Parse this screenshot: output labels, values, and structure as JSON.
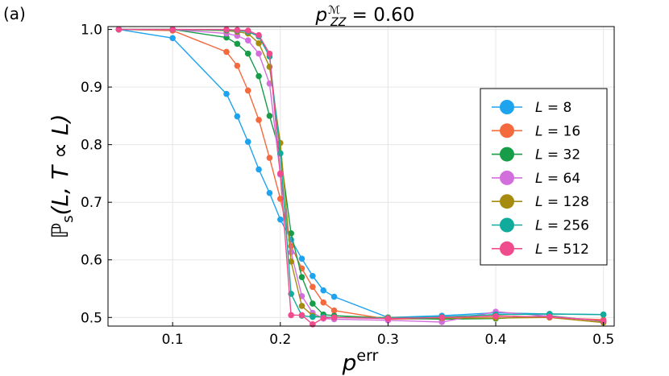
{
  "panel_label": "(a)",
  "chart_data": {
    "type": "line",
    "title": "p_ZZ^M = 0.60",
    "title_parts": {
      "base": "p",
      "sub": "ZZ",
      "sup": "ℳ",
      "rest": " = 0.60"
    },
    "xlabel": "p^err",
    "xlabel_parts": {
      "base": "p",
      "sup": "err"
    },
    "ylabel": "ℙs(L, T ∝ L)",
    "ylabel_parts": {
      "base": "ℙ",
      "sub": "s",
      "rest": "(L, T ∝ L)"
    },
    "xlim": [
      0.04,
      0.51
    ],
    "ylim": [
      0.485,
      1.005
    ],
    "xticks": [
      0.1,
      0.2,
      0.3,
      0.4,
      0.5
    ],
    "xtick_labels": [
      "0.1",
      "0.2",
      "0.3",
      "0.4",
      "0.5"
    ],
    "yticks": [
      0.5,
      0.6,
      0.7,
      0.8,
      0.9,
      1.0
    ],
    "ytick_labels": [
      "0.5",
      "0.6",
      "0.7",
      "0.8",
      "0.9",
      "1.0"
    ],
    "grid": true,
    "legend_position": "right",
    "series": [
      {
        "name": "L = 8",
        "label_var": "L",
        "label_rest": " = 8",
        "color": "#1ea3ef",
        "x": [
          0.05,
          0.1,
          0.15,
          0.16,
          0.17,
          0.18,
          0.19,
          0.2,
          0.21,
          0.22,
          0.23,
          0.24,
          0.25,
          0.3,
          0.35,
          0.4,
          0.45,
          0.5
        ],
        "y": [
          1.0,
          0.985,
          0.888,
          0.849,
          0.805,
          0.757,
          0.716,
          0.67,
          0.635,
          0.602,
          0.572,
          0.547,
          0.536,
          0.5,
          0.503,
          0.508,
          0.506,
          0.505
        ]
      },
      {
        "name": "L = 16",
        "label_var": "L",
        "label_rest": " = 16",
        "color": "#f46a3e",
        "x": [
          0.05,
          0.1,
          0.15,
          0.16,
          0.17,
          0.18,
          0.19,
          0.2,
          0.21,
          0.22,
          0.23,
          0.24,
          0.25,
          0.3,
          0.35,
          0.4,
          0.45,
          0.5
        ],
        "y": [
          1.0,
          0.998,
          0.961,
          0.937,
          0.894,
          0.843,
          0.777,
          0.706,
          0.624,
          0.585,
          0.553,
          0.526,
          0.512,
          0.497,
          0.498,
          0.503,
          0.5,
          0.496
        ]
      },
      {
        "name": "L = 32",
        "label_var": "L",
        "label_rest": " = 32",
        "color": "#179c47",
        "x": [
          0.05,
          0.1,
          0.15,
          0.16,
          0.17,
          0.18,
          0.19,
          0.2,
          0.21,
          0.22,
          0.23,
          0.24,
          0.25,
          0.3,
          0.35,
          0.4,
          0.45,
          0.5
        ],
        "y": [
          1.0,
          1.0,
          0.986,
          0.975,
          0.958,
          0.919,
          0.85,
          0.785,
          0.646,
          0.57,
          0.524,
          0.505,
          0.503,
          0.499,
          0.497,
          0.498,
          0.503,
          0.493
        ]
      },
      {
        "name": "L = 64",
        "label_var": "L",
        "label_rest": " = 64",
        "color": "#d26fdd",
        "x": [
          0.05,
          0.1,
          0.15,
          0.16,
          0.17,
          0.18,
          0.19,
          0.2,
          0.21,
          0.22,
          0.23,
          0.24,
          0.25,
          0.3,
          0.35,
          0.4,
          0.45,
          0.5
        ],
        "y": [
          1.0,
          1.0,
          0.993,
          0.989,
          0.981,
          0.958,
          0.906,
          0.748,
          0.613,
          0.537,
          0.508,
          0.498,
          0.497,
          0.495,
          0.492,
          0.51,
          0.502,
          0.494
        ]
      },
      {
        "name": "L = 128",
        "label_var": "L",
        "label_rest": " = 128",
        "color": "#a78b0e",
        "x": [
          0.05,
          0.1,
          0.15,
          0.16,
          0.17,
          0.18,
          0.19,
          0.2,
          0.21,
          0.22,
          0.23,
          0.24,
          0.25,
          0.3,
          0.35,
          0.4,
          0.45,
          0.5
        ],
        "y": [
          1.0,
          1.0,
          0.998,
          0.996,
          0.993,
          0.976,
          0.935,
          0.803,
          0.597,
          0.52,
          0.503,
          0.5,
          0.5,
          0.5,
          0.499,
          0.499,
          0.5,
          0.491
        ]
      },
      {
        "name": "L = 256",
        "label_var": "L",
        "label_rest": " = 256",
        "color": "#11ab9d",
        "x": [
          0.05,
          0.1,
          0.15,
          0.16,
          0.17,
          0.18,
          0.19,
          0.2,
          0.21,
          0.22,
          0.23,
          0.24,
          0.25,
          0.3,
          0.35,
          0.4,
          0.45,
          0.5
        ],
        "y": [
          1.0,
          1.0,
          0.999,
          0.998,
          0.996,
          0.988,
          0.953,
          0.785,
          0.541,
          0.503,
          0.501,
          0.501,
          0.5,
          0.499,
          0.501,
          0.505,
          0.506,
          0.505
        ]
      },
      {
        "name": "L = 512",
        "label_var": "L",
        "label_rest": " = 512",
        "color": "#f04b8c",
        "x": [
          0.05,
          0.1,
          0.15,
          0.16,
          0.17,
          0.18,
          0.19,
          0.2,
          0.21,
          0.22,
          0.23,
          0.24,
          0.25,
          0.3,
          0.35,
          0.4,
          0.45,
          0.5
        ],
        "y": [
          1.0,
          1.0,
          1.0,
          0.999,
          0.998,
          0.99,
          0.958,
          0.75,
          0.504,
          0.504,
          0.488,
          0.499,
          0.5,
          0.498,
          0.5,
          0.502,
          0.501,
          0.494
        ]
      }
    ]
  }
}
